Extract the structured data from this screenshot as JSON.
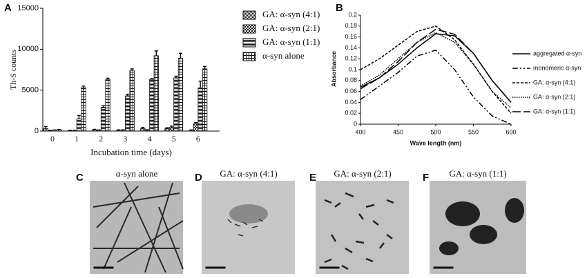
{
  "chart_data": [
    {
      "type": "bar",
      "panel_label": "A",
      "xlabel": "Incubation time (days)",
      "ylabel": "Th-S counts",
      "categories": [
        "0",
        "1",
        "2",
        "3",
        "4",
        "5",
        "6"
      ],
      "ylim": [
        0,
        15000
      ],
      "yticks": [
        0,
        5000,
        10000,
        15000
      ],
      "series": [
        {
          "name": "GA: α-syn (4:1)",
          "color": "#111111",
          "pattern": "fine-checker",
          "values": [
            300,
            50,
            150,
            100,
            300,
            300,
            100
          ],
          "errors": [
            250,
            40,
            60,
            50,
            150,
            100,
            40
          ]
        },
        {
          "name": "GA: α-syn (2:1)",
          "color": "#111111",
          "pattern": "coarse-checker",
          "values": [
            50,
            50,
            100,
            100,
            100,
            450,
            900
          ],
          "errors": [
            30,
            30,
            40,
            50,
            60,
            150,
            150
          ]
        },
        {
          "name": "GA: α-syn (1:1)",
          "color": "#111111",
          "pattern": "horizontal",
          "values": [
            100,
            1500,
            2900,
            4300,
            6300,
            6500,
            5300
          ],
          "errors": [
            40,
            400,
            200,
            200,
            100,
            200,
            800
          ]
        },
        {
          "name": "α-syn alone",
          "color": "#111111",
          "pattern": "grid",
          "values": [
            150,
            5300,
            6300,
            7400,
            9200,
            8900,
            7600
          ],
          "errors": [
            50,
            200,
            150,
            200,
            600,
            600,
            300
          ]
        }
      ]
    },
    {
      "type": "line",
      "panel_label": "B",
      "xlabel": "Wave length (nm)",
      "ylabel": "Absorbance",
      "x": [
        400,
        425,
        450,
        475,
        500,
        525,
        550,
        575,
        600
      ],
      "xlim": [
        400,
        600
      ],
      "xticks": [
        400,
        450,
        500,
        550,
        600
      ],
      "ylim": [
        0,
        0.2
      ],
      "yticks": [
        0,
        0.02,
        0.04,
        0.06,
        0.08,
        0.1,
        0.12,
        0.14,
        0.16,
        0.18,
        0.2
      ],
      "series": [
        {
          "name": "aggregated α-syn",
          "color": "#000000",
          "dash": "solid",
          "values": [
            0.068,
            0.085,
            0.11,
            0.14,
            0.166,
            0.162,
            0.13,
            0.08,
            0.04
          ]
        },
        {
          "name": "monomeric α-syn",
          "color": "#000000",
          "dash": "dash-dot",
          "values": [
            0.045,
            0.07,
            0.095,
            0.125,
            0.136,
            0.1,
            0.05,
            0.015,
            0
          ]
        },
        {
          "name": "GA: α-syn (4:1)",
          "color": "#000000",
          "dash": "dashed",
          "values": [
            0.1,
            0.12,
            0.145,
            0.17,
            0.18,
            0.155,
            0.11,
            0.06,
            0.02
          ]
        },
        {
          "name": "GA: α-syn (2:1)",
          "color": "#000000",
          "dash": "dotted",
          "values": [
            0.07,
            0.09,
            0.12,
            0.15,
            0.168,
            0.15,
            0.11,
            0.06,
            0.03
          ]
        },
        {
          "name": "GA: α-syn (1:1)",
          "color": "#000000",
          "dash": "long-dash",
          "values": [
            0.065,
            0.085,
            0.115,
            0.15,
            0.174,
            0.165,
            0.13,
            0.08,
            0.04
          ]
        }
      ]
    }
  ],
  "images": [
    {
      "panel_label": "C",
      "title": "α-syn alone"
    },
    {
      "panel_label": "D",
      "title": "GA: α-syn (4:1)"
    },
    {
      "panel_label": "E",
      "title": "GA: α-syn (2:1)"
    },
    {
      "panel_label": "F",
      "title": "GA: α-syn (1:1)"
    }
  ]
}
